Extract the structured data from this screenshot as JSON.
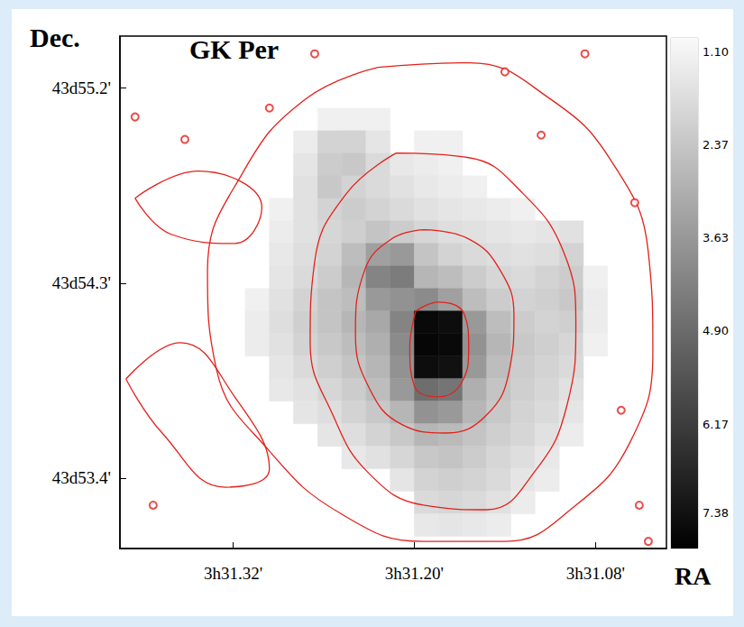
{
  "chart_data": {
    "type": "heatmap",
    "title": "GK Per",
    "x_label": "RA",
    "y_label": "Dec.",
    "xlim": [
      31.395,
      31.033
    ],
    "xticks": [
      {
        "value": 31.32,
        "label": "3h31.32'"
      },
      {
        "value": 31.2,
        "label": "3h31.20'"
      },
      {
        "value": 31.08,
        "label": "3h31.08'"
      }
    ],
    "ylim": [
      53.075,
      55.44
    ],
    "yticks": [
      {
        "value": 53.4,
        "label": "43d53.4'"
      },
      {
        "value": 54.3,
        "label": "43d54.3'"
      },
      {
        "value": 55.2,
        "label": "43d55.2'"
      }
    ],
    "grid": false,
    "heatmap": {
      "x": [
        31.304,
        31.288,
        31.272,
        31.256,
        31.24,
        31.224,
        31.208,
        31.192,
        31.176,
        31.16,
        31.144,
        31.128,
        31.112,
        31.096,
        31.08
      ],
      "y": [
        55.055,
        54.951,
        54.847,
        54.743,
        54.639,
        54.535,
        54.431,
        54.327,
        54.223,
        54.119,
        54.015,
        53.911,
        53.807,
        53.703,
        53.599,
        53.495,
        53.391,
        53.287,
        53.183
      ],
      "values": [
        [
          null,
          null,
          null,
          1.2,
          1.2,
          1.2,
          null,
          null,
          null,
          null,
          null,
          null,
          null,
          null,
          null
        ],
        [
          null,
          null,
          1.3,
          2.0,
          2.0,
          1.5,
          null,
          1.2,
          1.2,
          null,
          null,
          null,
          null,
          null,
          null
        ],
        [
          null,
          null,
          1.5,
          2.2,
          2.3,
          1.8,
          1.4,
          1.3,
          1.2,
          null,
          null,
          null,
          null,
          null,
          null
        ],
        [
          null,
          null,
          1.6,
          2.3,
          2.0,
          1.8,
          1.6,
          1.4,
          1.3,
          1.2,
          null,
          null,
          null,
          null,
          null
        ],
        [
          null,
          1.2,
          1.6,
          2.0,
          2.2,
          2.0,
          1.8,
          1.6,
          1.5,
          1.4,
          1.3,
          1.2,
          null,
          null,
          null
        ],
        [
          null,
          1.3,
          1.6,
          1.9,
          2.1,
          2.4,
          2.2,
          1.9,
          1.7,
          1.6,
          1.5,
          1.4,
          1.5,
          1.6,
          null
        ],
        [
          null,
          1.4,
          1.7,
          2.0,
          2.6,
          3.4,
          3.6,
          2.4,
          2.0,
          1.8,
          1.7,
          1.6,
          1.7,
          2.0,
          null
        ],
        [
          null,
          1.5,
          1.8,
          2.2,
          2.8,
          4.2,
          4.4,
          2.8,
          2.6,
          2.2,
          1.9,
          1.8,
          2.0,
          2.2,
          1.2
        ],
        [
          1.2,
          1.6,
          2.0,
          2.4,
          2.6,
          3.6,
          3.8,
          4.0,
          3.4,
          2.6,
          2.2,
          2.0,
          2.1,
          2.3,
          1.3
        ],
        [
          1.3,
          1.7,
          2.1,
          2.4,
          2.8,
          3.2,
          4.2,
          7.6,
          7.5,
          3.6,
          2.6,
          2.2,
          2.0,
          2.1,
          1.3
        ],
        [
          1.3,
          1.6,
          2.0,
          2.3,
          2.6,
          3.0,
          4.0,
          7.7,
          7.6,
          3.8,
          2.8,
          2.3,
          2.1,
          1.9,
          1.2
        ],
        [
          null,
          1.5,
          1.8,
          2.1,
          2.4,
          2.8,
          3.8,
          7.5,
          7.4,
          3.6,
          2.6,
          2.2,
          2.0,
          1.8,
          null
        ],
        [
          null,
          1.4,
          1.6,
          1.9,
          2.2,
          2.6,
          3.6,
          4.8,
          4.6,
          3.0,
          2.4,
          2.1,
          1.9,
          1.6,
          null
        ],
        [
          null,
          null,
          1.5,
          1.7,
          2.0,
          2.3,
          2.8,
          3.8,
          3.6,
          2.8,
          2.3,
          2.0,
          1.8,
          1.5,
          null
        ],
        [
          null,
          null,
          null,
          1.5,
          1.7,
          2.0,
          2.3,
          2.8,
          2.7,
          2.4,
          2.1,
          1.9,
          1.6,
          1.3,
          null
        ],
        [
          null,
          null,
          null,
          null,
          1.4,
          1.6,
          1.9,
          2.3,
          2.4,
          2.2,
          1.9,
          1.7,
          1.4,
          null,
          null
        ],
        [
          null,
          null,
          null,
          null,
          null,
          null,
          1.5,
          2.0,
          2.1,
          2.0,
          1.8,
          1.5,
          1.3,
          null,
          null
        ],
        [
          null,
          null,
          null,
          null,
          null,
          null,
          null,
          1.8,
          1.9,
          1.8,
          1.6,
          1.3,
          null,
          null,
          null
        ],
        [
          null,
          null,
          null,
          null,
          null,
          null,
          null,
          1.4,
          1.5,
          1.4,
          1.3,
          null,
          null,
          null,
          null
        ]
      ],
      "colorbar": {
        "range": [
          0.91,
          7.86
        ],
        "ticks": [
          {
            "value": 1.1,
            "label": "1.10"
          },
          2.37,
          3.63,
          {
            "value": 4.9,
            "label": "4.90"
          },
          6.17,
          7.38
        ]
      }
    },
    "contours": {
      "color": "#e3201b",
      "line_style": "solid",
      "lines": [
        [
          [
            31.199,
            54.171
          ],
          [
            31.184,
            54.212
          ],
          [
            31.167,
            54.158
          ],
          [
            31.164,
            54.004
          ],
          [
            31.169,
            53.837
          ],
          [
            31.184,
            53.775
          ],
          [
            31.2,
            53.825
          ],
          [
            31.203,
            54.004
          ]
        ],
        [
          [
            31.194,
            54.546
          ],
          [
            31.164,
            54.504
          ],
          [
            31.143,
            54.358
          ],
          [
            31.134,
            54.15
          ],
          [
            31.137,
            53.9
          ],
          [
            31.152,
            53.692
          ],
          [
            31.179,
            53.608
          ],
          [
            31.209,
            53.65
          ],
          [
            31.23,
            53.817
          ],
          [
            31.239,
            54.067
          ],
          [
            31.233,
            54.358
          ],
          [
            31.215,
            54.504
          ]
        ],
        [
          [
            31.212,
            54.9
          ],
          [
            31.164,
            54.879
          ],
          [
            31.128,
            54.713
          ],
          [
            31.101,
            54.442
          ],
          [
            31.093,
            54.108
          ],
          [
            31.099,
            53.733
          ],
          [
            31.119,
            53.442
          ],
          [
            31.152,
            53.254
          ],
          [
            31.194,
            53.275
          ],
          [
            31.23,
            53.421
          ],
          [
            31.254,
            53.692
          ],
          [
            31.269,
            54.025
          ],
          [
            31.266,
            54.4
          ],
          [
            31.245,
            54.713
          ]
        ],
        [
          [
            31.224,
            55.296
          ],
          [
            31.164,
            55.317
          ],
          [
            31.11,
            55.15
          ],
          [
            31.069,
            54.858
          ],
          [
            31.045,
            54.442
          ],
          [
            31.042,
            53.983
          ],
          [
            31.057,
            53.567
          ],
          [
            31.093,
            53.275
          ],
          [
            31.14,
            53.108
          ],
          [
            31.194,
            53.108
          ],
          [
            31.248,
            53.233
          ],
          [
            31.296,
            53.525
          ],
          [
            31.331,
            53.9
          ],
          [
            31.337,
            54.358
          ],
          [
            31.313,
            54.817
          ],
          [
            31.272,
            55.15
          ]
        ],
        [
          [
            31.391,
            53.858
          ],
          [
            31.355,
            54.025
          ],
          [
            31.319,
            53.775
          ],
          [
            31.296,
            53.442
          ],
          [
            31.325,
            53.358
          ],
          [
            31.367,
            53.608
          ]
        ],
        [
          [
            31.385,
            54.692
          ],
          [
            31.343,
            54.817
          ],
          [
            31.301,
            54.65
          ],
          [
            31.319,
            54.483
          ],
          [
            31.361,
            54.525
          ]
        ]
      ]
    },
    "points": {
      "marker": "circle",
      "color": "#e3201b",
      "values": [
        [
          31.385,
          55.067
        ],
        [
          31.352,
          54.963
        ],
        [
          31.14,
          55.275
        ],
        [
          31.087,
          55.358
        ],
        [
          31.054,
          54.671
        ],
        [
          31.051,
          53.275
        ],
        [
          31.266,
          55.358
        ],
        [
          31.373,
          53.275
        ],
        [
          31.296,
          55.108
        ],
        [
          31.063,
          53.713
        ],
        [
          31.045,
          53.108
        ],
        [
          31.116,
          54.983
        ]
      ]
    }
  }
}
